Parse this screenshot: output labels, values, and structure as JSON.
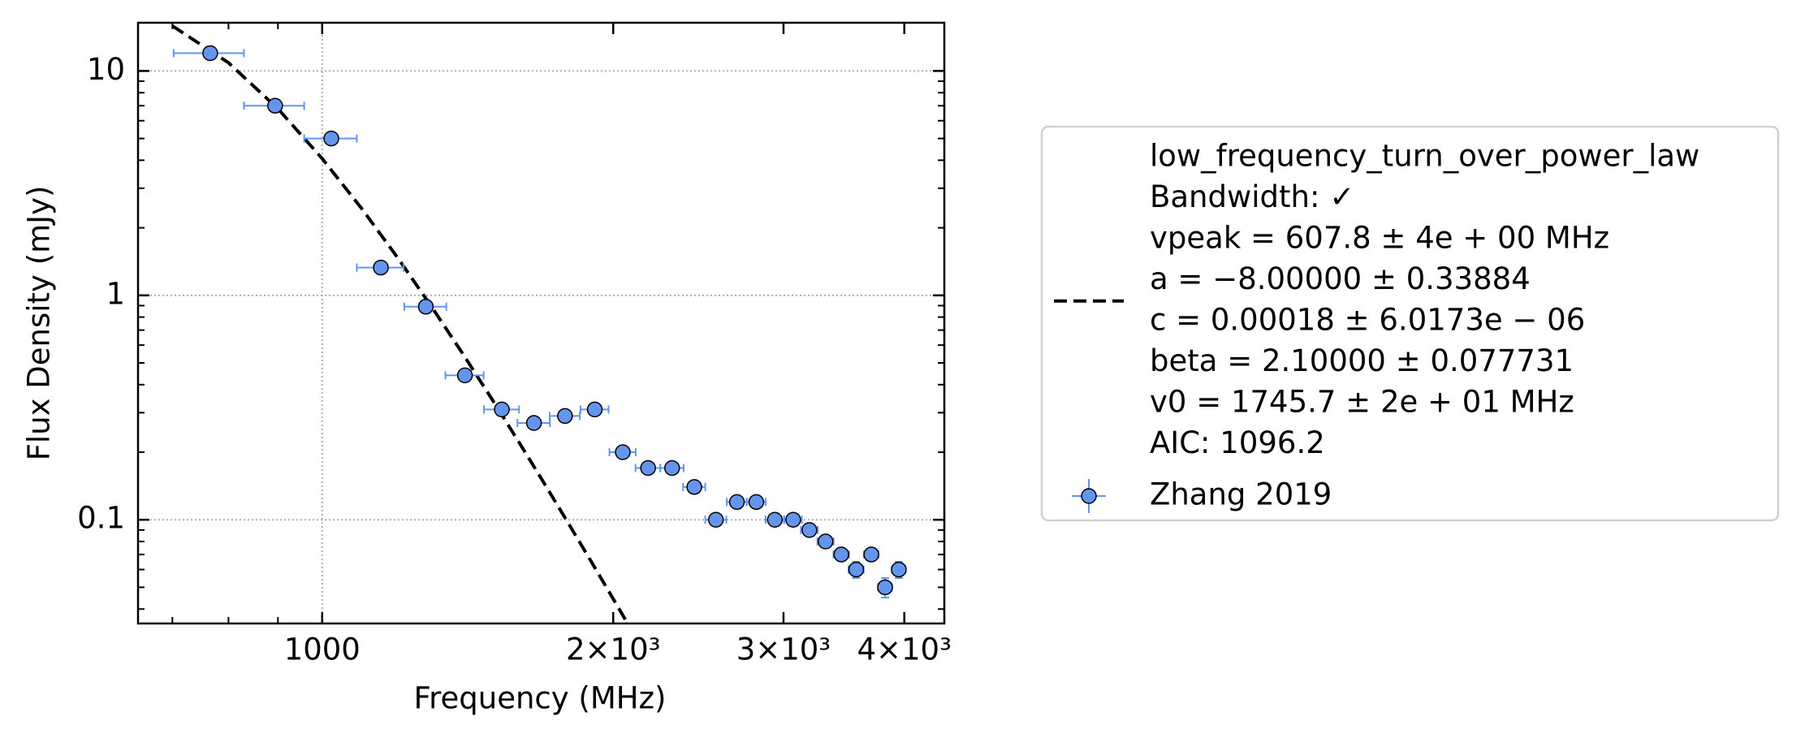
{
  "chart_data": {
    "type": "scatter",
    "xlabel": "Frequency (MHz)",
    "ylabel": "Flux Density (mJy)",
    "xscale": "log",
    "yscale": "log",
    "xlim": [
      645,
      4400
    ],
    "ylim": [
      0.0345,
      16.4
    ],
    "xticks": [
      1000,
      {
        "value": 2000,
        "label": "2×10³"
      },
      {
        "value": 3000,
        "label": "3×10³"
      },
      {
        "value": 4000,
        "label": "4×10³"
      }
    ],
    "yticks": [
      0.1,
      1,
      10
    ],
    "grid": true,
    "legend_position": "outside right",
    "series": [
      {
        "name": [
          "low_frequency_turn_over_power_law",
          "Bandwidth: ✓",
          "vpeak = 607.8 ± 4e + 00 MHz",
          "a = −8.00000 ± 0.33884",
          "c = 0.00018 ± 6.0173e − 06",
          "beta = 2.10000 ± 0.077731",
          "v0 = 1745.7 ± 2e + 01 MHz",
          "AIC: 1096.2"
        ],
        "type": "line",
        "color": "#000000",
        "dashed": true,
        "x": [
          700,
          800,
          900,
          1000,
          1100,
          1200,
          1300,
          1400,
          1500,
          1600,
          1700,
          1800,
          1900,
          2000,
          2100
        ],
        "values": [
          15.87,
          10.88,
          6.785,
          4.07,
          2.421,
          1.448,
          0.879,
          0.5435,
          0.342,
          0.2195,
          0.1435,
          0.0954,
          0.0646,
          0.0444,
          0.031
        ]
      },
      {
        "name": "Zhang 2019",
        "type": "errorbar",
        "color": "#6495ed",
        "x": [
          766,
          894,
          1022,
          1150,
          1280,
          1405,
          1534,
          1656,
          1783,
          1914,
          2046,
          2173,
          2301,
          2426,
          2554,
          2685,
          2812,
          2939,
          3070,
          3191,
          3316,
          3443,
          3567,
          3698,
          3821,
          3948
        ],
        "values": [
          12,
          7,
          5,
          1.33,
          0.89,
          0.44,
          0.31,
          0.27,
          0.29,
          0.31,
          0.2,
          0.17,
          0.17,
          0.14,
          0.1,
          0.12,
          0.12,
          0.1,
          0.1,
          0.09,
          0.08,
          0.07,
          0.06,
          0.07,
          0.05,
          0.06
        ],
        "xerr": [
          64,
          64,
          64,
          64,
          64,
          64,
          64,
          64,
          64,
          64,
          64,
          64,
          64,
          64,
          64,
          64,
          64,
          64,
          64,
          64,
          64,
          64,
          64,
          64,
          64,
          64
        ],
        "yerr": [
          null,
          null,
          null,
          null,
          null,
          null,
          null,
          null,
          null,
          null,
          null,
          null,
          null,
          null,
          null,
          null,
          null,
          null,
          null,
          null,
          null,
          null,
          0.005,
          null,
          0.005,
          0.005
        ]
      }
    ]
  }
}
